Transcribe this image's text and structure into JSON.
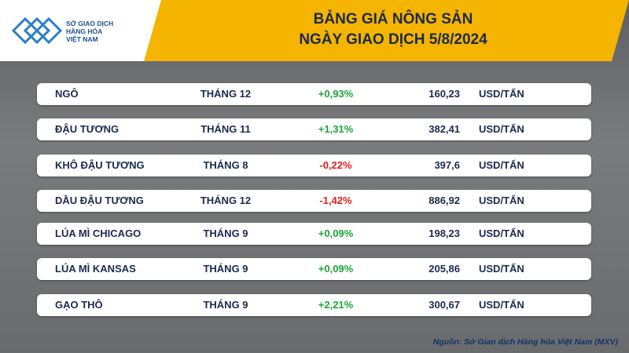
{
  "header": {
    "logo_lines": [
      "SỞ GIAO DỊCH",
      "HÀNG HÓA",
      "VIỆT NAM"
    ],
    "title": "BẢNG GIÁ NÔNG SẢN",
    "subtitle": "NGÀY GIAO DỊCH 5/8/2024"
  },
  "table": {
    "rows": [
      [
        "NGÔ",
        "THÁNG 12",
        "+0,93%",
        "160,23",
        "USD/TẤN"
      ],
      [
        "ĐẬU TƯƠNG",
        "THÁNG 11",
        "+1,31%",
        "382,41",
        "USD/TẤN"
      ],
      [
        "KHÔ ĐẬU TƯƠNG",
        "THÁNG 8",
        "-0,22%",
        "397,6",
        "USD/TẤN"
      ],
      [
        "DẦU ĐẬU TƯƠNG",
        "THÁNG 12",
        "-1,42%",
        "886,92",
        "USD/TẤN"
      ],
      [
        "LÚA MÌ CHICAGO",
        "THÁNG 9",
        "+0,09%",
        "198,23",
        "USD/TẤN"
      ],
      [
        "LÚA MÌ KANSAS",
        "THÁNG 9",
        "+0,09%",
        "205,86",
        "USD/TẤN"
      ],
      [
        "GẠO THÔ",
        "THÁNG 9",
        "+2,21%",
        "300,67",
        "USD/TẤN"
      ]
    ]
  },
  "footer": {
    "source": "Nguồn: Sở Giao dịch Hàng hóa Việt Nam (MXV)"
  }
}
